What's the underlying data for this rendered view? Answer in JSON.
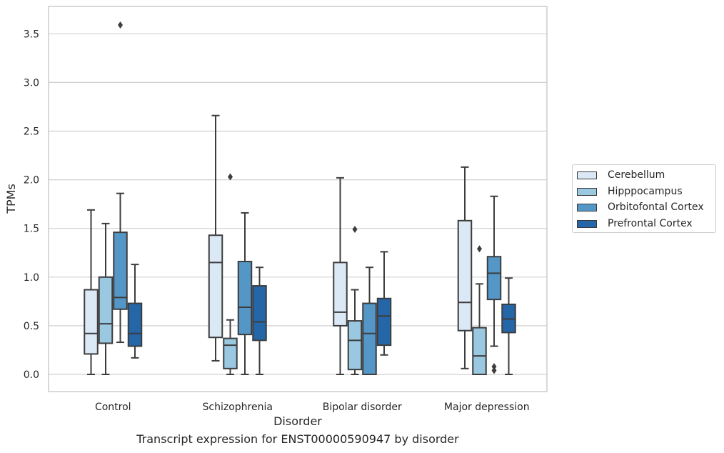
{
  "caption": "Transcript expression for ENST00000590947 by disorder",
  "chart_data": {
    "type": "box",
    "xlabel": "Disorder",
    "ylabel": "TPMs",
    "ylim": [
      -0.17,
      3.78
    ],
    "yticks": [
      0.0,
      0.5,
      1.0,
      1.5,
      2.0,
      2.5,
      3.0,
      3.5
    ],
    "ytick_labels": [
      "0.0",
      "0.5",
      "1.0",
      "1.5",
      "2.0",
      "2.5",
      "3.0",
      "3.5"
    ],
    "grid": "horizontal",
    "legend_position": "right-outside",
    "categories": [
      "Control",
      "Schizophrenia",
      "Bipolar disorder",
      "Major depression"
    ],
    "series": [
      {
        "name": "Cerebellum",
        "color": "#dbe8f6",
        "boxes": [
          {
            "whislo": 0.0,
            "q1": 0.21,
            "med": 0.42,
            "q3": 0.87,
            "whishi": 1.69,
            "fliers": []
          },
          {
            "whislo": 0.14,
            "q1": 0.38,
            "med": 1.15,
            "q3": 1.43,
            "whishi": 2.66,
            "fliers": []
          },
          {
            "whislo": 0.0,
            "q1": 0.5,
            "med": 0.64,
            "q3": 1.15,
            "whishi": 2.02,
            "fliers": []
          },
          {
            "whislo": 0.06,
            "q1": 0.45,
            "med": 0.74,
            "q3": 1.58,
            "whishi": 2.13,
            "fliers": []
          }
        ]
      },
      {
        "name": "Hipppocampus",
        "color": "#9ac8e0",
        "boxes": [
          {
            "whislo": 0.0,
            "q1": 0.32,
            "med": 0.52,
            "q3": 1.0,
            "whishi": 1.55,
            "fliers": []
          },
          {
            "whislo": 0.0,
            "q1": 0.06,
            "med": 0.3,
            "q3": 0.37,
            "whishi": 0.56,
            "fliers": [
              2.03
            ]
          },
          {
            "whislo": 0.0,
            "q1": 0.05,
            "med": 0.35,
            "q3": 0.55,
            "whishi": 0.87,
            "fliers": [
              1.49
            ]
          },
          {
            "whislo": 0.0,
            "q1": 0.0,
            "med": 0.19,
            "q3": 0.48,
            "whishi": 0.93,
            "fliers": [
              1.29
            ]
          }
        ]
      },
      {
        "name": "Orbitofontal Cortex",
        "color": "#5497c7",
        "boxes": [
          {
            "whislo": 0.33,
            "q1": 0.67,
            "med": 0.79,
            "q3": 1.46,
            "whishi": 1.86,
            "fliers": [
              3.59
            ]
          },
          {
            "whislo": 0.0,
            "q1": 0.41,
            "med": 0.69,
            "q3": 1.16,
            "whishi": 1.66,
            "fliers": []
          },
          {
            "whislo": 0.0,
            "q1": 0.0,
            "med": 0.42,
            "q3": 0.73,
            "whishi": 1.1,
            "fliers": []
          },
          {
            "whislo": 0.29,
            "q1": 0.77,
            "med": 1.04,
            "q3": 1.21,
            "whishi": 1.83,
            "fliers": [
              0.08,
              0.04
            ]
          }
        ]
      },
      {
        "name": "Prefrontal Cortex",
        "color": "#2566a8",
        "boxes": [
          {
            "whislo": 0.17,
            "q1": 0.29,
            "med": 0.42,
            "q3": 0.73,
            "whishi": 1.13,
            "fliers": []
          },
          {
            "whislo": 0.0,
            "q1": 0.35,
            "med": 0.54,
            "q3": 0.91,
            "whishi": 1.1,
            "fliers": []
          },
          {
            "whislo": 0.2,
            "q1": 0.3,
            "med": 0.6,
            "q3": 0.78,
            "whishi": 1.26,
            "fliers": []
          },
          {
            "whislo": 0.0,
            "q1": 0.43,
            "med": 0.57,
            "q3": 0.72,
            "whishi": 0.99,
            "fliers": []
          }
        ]
      }
    ]
  }
}
